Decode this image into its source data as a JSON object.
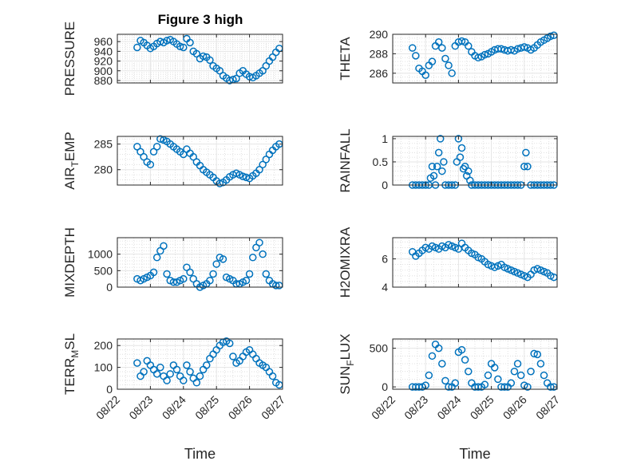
{
  "figure": {
    "title": "Figure 3 high",
    "marker_color": "#0072BD",
    "axes_color": "#262626",
    "grid_color": "#d9d9d9"
  },
  "chart_data": [
    {
      "type": "scatter",
      "title": "Figure 3 high",
      "ylabel": "PRESSURE",
      "xlabel": "",
      "grid": true,
      "ylim": [
        875,
        975
      ],
      "yticks": [
        880,
        900,
        920,
        940,
        960
      ],
      "xlim": [
        0,
        5
      ],
      "x": [
        0.6,
        0.7,
        0.8,
        0.9,
        1.0,
        1.1,
        1.2,
        1.3,
        1.4,
        1.5,
        1.6,
        1.7,
        1.8,
        1.9,
        2.0,
        2.1,
        2.2,
        2.3,
        2.4,
        2.5,
        2.6,
        2.7,
        2.8,
        2.9,
        3.0,
        3.1,
        3.2,
        3.3,
        3.4,
        3.5,
        3.6,
        3.7,
        3.8,
        3.9,
        4.0,
        4.1,
        4.2,
        4.3,
        4.4,
        4.5,
        4.6,
        4.7,
        4.8,
        4.9
      ],
      "y": [
        948,
        962,
        958,
        952,
        946,
        950,
        956,
        960,
        958,
        962,
        964,
        960,
        955,
        950,
        948,
        966,
        958,
        940,
        935,
        925,
        930,
        928,
        922,
        910,
        905,
        900,
        890,
        885,
        880,
        882,
        884,
        895,
        900,
        893,
        888,
        886,
        890,
        895,
        900,
        910,
        920,
        928,
        938,
        946
      ]
    },
    {
      "type": "scatter",
      "ylabel": "THETA",
      "xlabel": "",
      "grid": true,
      "ylim": [
        285,
        290
      ],
      "yticks": [
        286,
        288,
        290
      ],
      "xlim": [
        0,
        5
      ],
      "x": [
        0.6,
        0.7,
        0.8,
        0.9,
        1.0,
        1.1,
        1.2,
        1.3,
        1.4,
        1.5,
        1.6,
        1.7,
        1.8,
        1.9,
        2.0,
        2.1,
        2.2,
        2.3,
        2.4,
        2.5,
        2.6,
        2.7,
        2.8,
        2.9,
        3.0,
        3.1,
        3.2,
        3.3,
        3.4,
        3.5,
        3.6,
        3.7,
        3.8,
        3.9,
        4.0,
        4.1,
        4.2,
        4.3,
        4.4,
        4.5,
        4.6,
        4.7,
        4.8,
        4.9
      ],
      "y": [
        288.6,
        287.8,
        286.5,
        286.2,
        285.8,
        286.8,
        287.2,
        288.8,
        289.2,
        288.6,
        287.5,
        286.8,
        286.0,
        288.8,
        289.2,
        289.3,
        289.2,
        288.8,
        288.2,
        287.8,
        287.6,
        287.7,
        287.9,
        288.0,
        288.2,
        288.4,
        288.5,
        288.5,
        288.4,
        288.3,
        288.4,
        288.3,
        288.5,
        288.6,
        288.7,
        288.6,
        288.4,
        288.6,
        288.9,
        289.2,
        289.4,
        289.6,
        289.8,
        289.9
      ]
    },
    {
      "type": "scatter",
      "ylabel": "AIR_TEMP",
      "xlabel": "",
      "grid": true,
      "ylim": [
        277,
        286.5
      ],
      "yticks": [
        280,
        285
      ],
      "xlim": [
        0,
        5
      ],
      "x": [
        0.6,
        0.7,
        0.8,
        0.9,
        1.0,
        1.1,
        1.2,
        1.3,
        1.4,
        1.5,
        1.6,
        1.7,
        1.8,
        1.9,
        2.0,
        2.1,
        2.2,
        2.3,
        2.4,
        2.5,
        2.6,
        2.7,
        2.8,
        2.9,
        3.0,
        3.1,
        3.2,
        3.3,
        3.4,
        3.5,
        3.6,
        3.7,
        3.8,
        3.9,
        4.0,
        4.1,
        4.2,
        4.3,
        4.4,
        4.5,
        4.6,
        4.7,
        4.8,
        4.9
      ],
      "y": [
        284.5,
        283.5,
        282.5,
        281.5,
        281.0,
        283.5,
        284.5,
        286.0,
        285.8,
        285.5,
        285.0,
        284.5,
        284.0,
        283.5,
        283.0,
        284.0,
        283.2,
        282.5,
        281.5,
        280.8,
        280.0,
        279.5,
        279.0,
        278.5,
        277.8,
        277.3,
        277.5,
        278.0,
        278.6,
        279.0,
        279.3,
        279.0,
        278.7,
        278.5,
        278.3,
        278.8,
        279.3,
        280.0,
        281.0,
        282.0,
        283.0,
        283.8,
        284.5,
        285.0
      ]
    },
    {
      "type": "scatter",
      "ylabel": "RAINFALL",
      "xlabel": "",
      "grid": true,
      "ylim": [
        0,
        1.05
      ],
      "yticks": [
        0,
        0.5,
        1
      ],
      "xlim": [
        0,
        5
      ],
      "x": [
        0.6,
        0.7,
        0.8,
        0.9,
        1.0,
        1.1,
        1.15,
        1.2,
        1.25,
        1.3,
        1.35,
        1.4,
        1.45,
        1.5,
        1.55,
        1.6,
        1.7,
        1.8,
        1.9,
        1.95,
        2.0,
        2.05,
        2.1,
        2.15,
        2.2,
        2.25,
        2.3,
        2.35,
        2.4,
        2.5,
        2.6,
        2.7,
        2.8,
        2.9,
        3.0,
        3.1,
        3.2,
        3.3,
        3.4,
        3.5,
        3.6,
        3.7,
        3.8,
        3.9,
        4.0,
        4.05,
        4.1,
        4.2,
        4.3,
        4.4,
        4.5,
        4.6,
        4.7,
        4.8,
        4.9
      ],
      "y": [
        0,
        0,
        0,
        0,
        0,
        0,
        0.15,
        0.4,
        0.2,
        0,
        0.4,
        0.7,
        1.0,
        0.3,
        0.5,
        0,
        0,
        0,
        0,
        0.5,
        1.0,
        0.6,
        0.8,
        0.35,
        0.4,
        0.2,
        0.3,
        0.1,
        0,
        0,
        0,
        0,
        0,
        0,
        0,
        0,
        0,
        0,
        0,
        0,
        0,
        0,
        0,
        0,
        0.4,
        0.7,
        0.4,
        0,
        0,
        0,
        0,
        0,
        0,
        0,
        0
      ]
    },
    {
      "type": "scatter",
      "ylabel": "MIXDEPTH",
      "xlabel": "",
      "grid": true,
      "ylim": [
        0,
        1500
      ],
      "yticks": [
        0,
        500,
        1000
      ],
      "xlim": [
        0,
        5
      ],
      "x": [
        0.6,
        0.7,
        0.8,
        0.9,
        1.0,
        1.1,
        1.2,
        1.3,
        1.4,
        1.5,
        1.6,
        1.7,
        1.8,
        1.9,
        2.0,
        2.1,
        2.2,
        2.3,
        2.4,
        2.5,
        2.6,
        2.7,
        2.8,
        2.9,
        3.0,
        3.1,
        3.2,
        3.3,
        3.4,
        3.5,
        3.6,
        3.7,
        3.8,
        3.9,
        4.0,
        4.1,
        4.2,
        4.3,
        4.4,
        4.5,
        4.6,
        4.7,
        4.8,
        4.9
      ],
      "y": [
        250,
        200,
        250,
        300,
        350,
        450,
        900,
        1100,
        1250,
        400,
        200,
        150,
        150,
        200,
        250,
        600,
        450,
        250,
        100,
        0,
        50,
        100,
        200,
        400,
        700,
        900,
        850,
        300,
        250,
        200,
        100,
        100,
        150,
        200,
        400,
        900,
        1200,
        1350,
        1000,
        400,
        200,
        100,
        50,
        50
      ]
    },
    {
      "type": "scatter",
      "ylabel": "H2OMIXRA",
      "xlabel": "",
      "grid": true,
      "ylim": [
        4,
        7.5
      ],
      "yticks": [
        4,
        6
      ],
      "xlim": [
        0,
        5
      ],
      "x": [
        0.6,
        0.7,
        0.8,
        0.9,
        1.0,
        1.1,
        1.2,
        1.3,
        1.4,
        1.5,
        1.6,
        1.7,
        1.8,
        1.9,
        2.0,
        2.1,
        2.2,
        2.3,
        2.4,
        2.5,
        2.6,
        2.7,
        2.8,
        2.9,
        3.0,
        3.1,
        3.2,
        3.3,
        3.4,
        3.5,
        3.6,
        3.7,
        3.8,
        3.9,
        4.0,
        4.1,
        4.2,
        4.3,
        4.4,
        4.5,
        4.6,
        4.7,
        4.8,
        4.9
      ],
      "y": [
        6.5,
        6.2,
        6.4,
        6.6,
        6.8,
        6.7,
        6.9,
        6.8,
        6.7,
        6.9,
        6.8,
        7.0,
        6.9,
        6.8,
        6.7,
        7.1,
        6.8,
        6.6,
        6.4,
        6.3,
        6.1,
        6.0,
        5.8,
        5.6,
        5.5,
        5.4,
        5.5,
        5.6,
        5.4,
        5.3,
        5.2,
        5.1,
        5.0,
        4.9,
        4.8,
        4.7,
        4.9,
        5.2,
        5.3,
        5.2,
        5.1,
        5.0,
        4.8,
        4.7
      ]
    },
    {
      "type": "scatter",
      "ylabel": "TERR_MSL",
      "xlabel": "Time",
      "grid": true,
      "ylim": [
        0,
        230
      ],
      "yticks": [
        0,
        100,
        200
      ],
      "xlim": [
        0,
        5
      ],
      "xticks": [
        0,
        1,
        2,
        3,
        4,
        5
      ],
      "xticklabels": [
        "08/22",
        "08/23",
        "08/24",
        "08/25",
        "08/26",
        "08/27"
      ],
      "x": [
        0.6,
        0.7,
        0.8,
        0.9,
        1.0,
        1.1,
        1.2,
        1.3,
        1.4,
        1.5,
        1.6,
        1.7,
        1.8,
        1.9,
        2.0,
        2.1,
        2.2,
        2.3,
        2.4,
        2.5,
        2.6,
        2.7,
        2.8,
        2.9,
        3.0,
        3.1,
        3.2,
        3.3,
        3.4,
        3.5,
        3.6,
        3.7,
        3.8,
        3.9,
        4.0,
        4.1,
        4.2,
        4.3,
        4.4,
        4.5,
        4.6,
        4.7,
        4.8,
        4.9
      ],
      "y": [
        120,
        60,
        80,
        130,
        110,
        90,
        70,
        100,
        60,
        40,
        70,
        110,
        90,
        60,
        40,
        110,
        80,
        50,
        30,
        60,
        90,
        110,
        140,
        160,
        180,
        200,
        215,
        220,
        210,
        150,
        120,
        130,
        150,
        170,
        180,
        160,
        140,
        120,
        110,
        100,
        80,
        60,
        30,
        20
      ]
    },
    {
      "type": "scatter",
      "ylabel": "SUN_FLUX",
      "xlabel": "Time",
      "grid": true,
      "ylim": [
        -30,
        620
      ],
      "yticks": [
        0,
        500
      ],
      "xlim": [
        0,
        5
      ],
      "xticks": [
        0,
        1,
        2,
        3,
        4,
        5
      ],
      "xticklabels": [
        "08/22",
        "08/23",
        "08/24",
        "08/25",
        "08/26",
        "08/27"
      ],
      "x": [
        0.6,
        0.7,
        0.8,
        0.9,
        1.0,
        1.1,
        1.2,
        1.3,
        1.4,
        1.5,
        1.6,
        1.7,
        1.8,
        1.9,
        2.0,
        2.1,
        2.2,
        2.3,
        2.4,
        2.5,
        2.6,
        2.7,
        2.8,
        2.9,
        3.0,
        3.1,
        3.2,
        3.3,
        3.4,
        3.5,
        3.6,
        3.7,
        3.8,
        3.9,
        4.0,
        4.1,
        4.2,
        4.3,
        4.4,
        4.5,
        4.6,
        4.7,
        4.8,
        4.9
      ],
      "y": [
        0,
        0,
        0,
        0,
        20,
        150,
        400,
        550,
        500,
        300,
        80,
        0,
        0,
        50,
        450,
        480,
        350,
        200,
        50,
        0,
        0,
        0,
        30,
        150,
        300,
        250,
        100,
        0,
        0,
        0,
        50,
        200,
        300,
        150,
        20,
        0,
        200,
        430,
        420,
        300,
        150,
        50,
        0,
        0
      ]
    }
  ]
}
